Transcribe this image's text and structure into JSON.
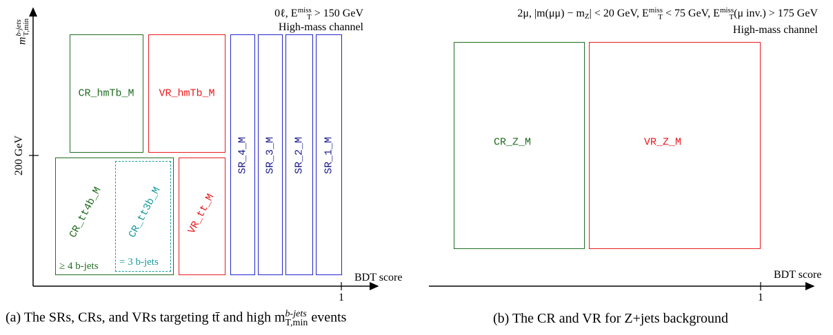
{
  "panel_a": {
    "y_axis_label": "m",
    "y_axis_label_sup": "b-jets",
    "y_axis_label_sub": "T,min",
    "y_tick_label": "200 GeV",
    "x_axis_label": "BDT score",
    "x_tick_label": "1",
    "header_line1_prefix": "0ℓ, E",
    "header_line1_sup": "miss",
    "header_line1_sub": "T",
    "header_line1_suffix": " > 150 GeV",
    "header_line2": "High-mass channel",
    "regions": {
      "cr_hmtb": "CR_hmTb_M",
      "vr_hmtb": "VR_hmTb_M",
      "sr_4": "SR_4_M",
      "sr_3": "SR_3_M",
      "sr_2": "SR_2_M",
      "sr_1": "SR_1_M",
      "cr_tt4b": "CR_tt4b_M",
      "cr_tt3b": "CR_tt3b_M",
      "vr_tt": "VR_tt_M"
    },
    "note_4b": "≥ 4 b-jets",
    "note_3b": "= 3 b-jets",
    "caption_prefix": "(a) The SRs, CRs, and VRs targeting tt̄ and high m",
    "caption_sup": "b-jets",
    "caption_sub": "T,min",
    "caption_suffix": " events"
  },
  "panel_b": {
    "header_line1": "2μ, |m(μμ) − m",
    "header_line1_sub1": "Z",
    "header_line1_mid": "| < 20 GeV, E",
    "header_line1_sup2": "miss",
    "header_line1_sub2": "T",
    "header_line1_mid2": " < 75 GeV, E",
    "header_line1_sup3": "miss",
    "header_line1_sub3": "T",
    "header_line1_suffix": "(μ inv.) > 175 GeV",
    "header_line2": "High-mass channel",
    "x_axis_label": "BDT score",
    "x_tick_label": "1",
    "regions": {
      "cr_z": "CR_Z_M",
      "vr_z": "VR_Z_M"
    },
    "caption": "(b) The CR and VR for Z+jets background"
  },
  "colors": {
    "control_region": "#1f6b1f",
    "validation_region": "#e8191c",
    "signal_region": "#2222cc",
    "cr_3b": "#1a9a9a"
  }
}
